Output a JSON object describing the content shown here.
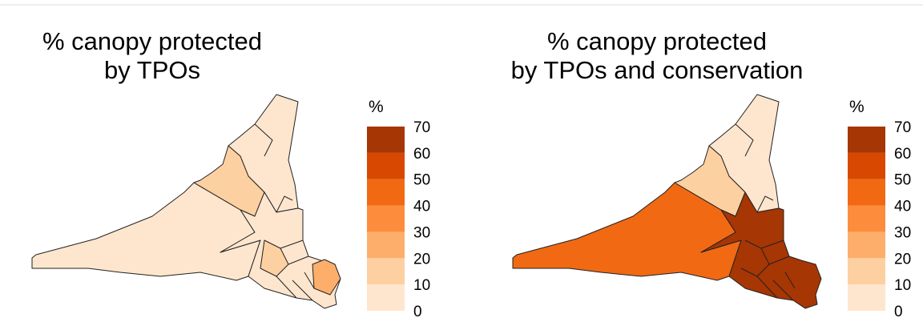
{
  "maps": [
    {
      "title": [
        "% canopy protected",
        "by TPOs"
      ],
      "legend": {
        "title": "%",
        "ticks": [
          0,
          10,
          20,
          30,
          40,
          50,
          60,
          70
        ],
        "colors": [
          "#fee6ce",
          "#fdd0a2",
          "#fdae6b",
          "#fd8d3c",
          "#f16913",
          "#d94801",
          "#a63603"
        ]
      }
    },
    {
      "title": [
        "% canopy protected",
        "by TPOs and conservation"
      ],
      "legend": {
        "title": "%",
        "ticks": [
          0,
          10,
          20,
          30,
          40,
          50,
          60,
          70
        ],
        "colors": [
          "#fee6ce",
          "#fdd0a2",
          "#fdae6b",
          "#fd8d3c",
          "#f16913",
          "#d94801",
          "#a63603"
        ]
      }
    }
  ]
}
